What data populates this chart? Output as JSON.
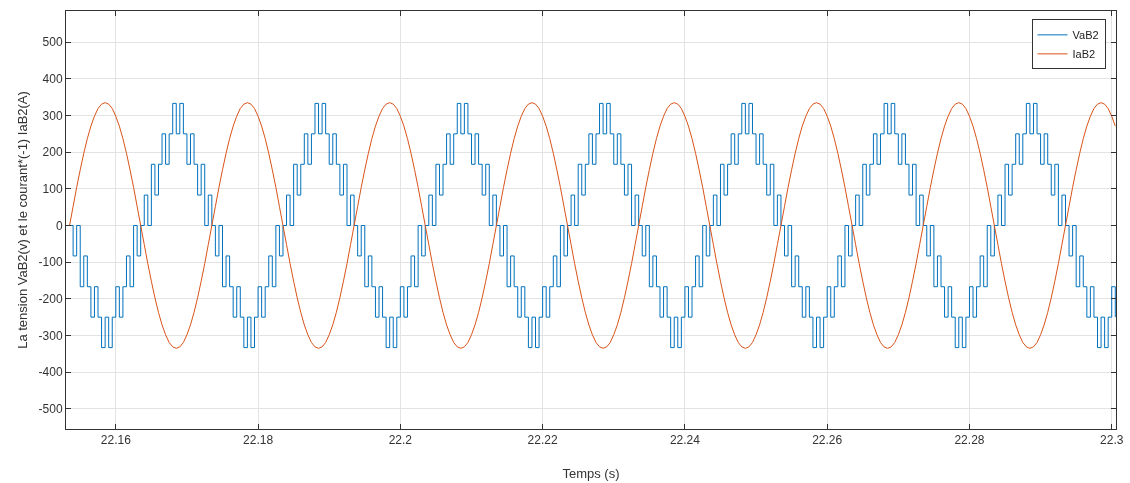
{
  "chart_data": {
    "type": "line",
    "xlabel": "Temps (s)",
    "ylabel": "La tension VaB2(v) et le courant*(-1) IaB2(A)",
    "xlim": [
      22.153,
      22.3006
    ],
    "xticks": [
      22.16,
      22.18,
      22.2,
      22.22,
      22.24,
      22.26,
      22.28,
      22.3
    ],
    "ylim": [
      -555,
      585
    ],
    "yticks": [
      -500,
      -400,
      -300,
      -200,
      -100,
      0,
      100,
      200,
      300,
      400,
      500
    ],
    "grid": true,
    "legend": "top right",
    "x": [
      22.1535,
      22.154,
      22.1545,
      22.155,
      22.1555,
      22.156,
      22.1565,
      22.157,
      22.1575,
      22.158,
      22.1585,
      22.159,
      22.1595,
      22.16,
      22.1605,
      22.161,
      22.1615,
      22.162,
      22.1625,
      22.163,
      22.1635,
      22.164,
      22.1645,
      22.165,
      22.1655,
      22.166,
      22.1665,
      22.167,
      22.1675,
      22.168,
      22.1685,
      22.169,
      22.1695,
      22.17,
      22.1705,
      22.171,
      22.1715,
      22.172,
      22.1725,
      22.173,
      22.1735,
      22.174,
      22.1745,
      22.175,
      22.1755,
      22.176,
      22.1765,
      22.177,
      22.1775,
      22.178,
      22.1785,
      22.179,
      22.1795,
      22.18,
      22.1805,
      22.181,
      22.1815,
      22.182,
      22.1825,
      22.183,
      22.1835,
      22.184,
      22.1845,
      22.185,
      22.1855,
      22.186,
      22.1865,
      22.187,
      22.1875,
      22.188,
      22.1885,
      22.189,
      22.1895,
      22.19,
      22.1905,
      22.191,
      22.1915,
      22.192,
      22.1925,
      22.193,
      22.1935,
      22.194,
      22.1945,
      22.195,
      22.1955,
      22.196,
      22.1965,
      22.197,
      22.1975,
      22.198,
      22.1985,
      22.199,
      22.1995,
      22.2,
      22.2005,
      22.201,
      22.2015,
      22.202,
      22.2025,
      22.203,
      22.2035,
      22.204,
      22.2045,
      22.205,
      22.2055,
      22.206,
      22.2065,
      22.207,
      22.2075,
      22.208,
      22.2085,
      22.209,
      22.2095,
      22.21,
      22.2105,
      22.211,
      22.2115,
      22.212,
      22.2125,
      22.213,
      22.2135,
      22.214,
      22.2145,
      22.215,
      22.2155,
      22.216,
      22.2165,
      22.217,
      22.2175,
      22.218,
      22.2185,
      22.219,
      22.2195,
      22.22,
      22.2205,
      22.221,
      22.2215,
      22.222,
      22.2225,
      22.223,
      22.2235,
      22.224,
      22.2245,
      22.225,
      22.2255,
      22.226,
      22.2265,
      22.227,
      22.2275,
      22.228,
      22.2285,
      22.229,
      22.2295,
      22.23,
      22.2305,
      22.231,
      22.2315,
      22.232,
      22.2325,
      22.233,
      22.2335,
      22.234,
      22.2345,
      22.235,
      22.2355,
      22.236,
      22.2365,
      22.237,
      22.2375,
      22.238,
      22.2385,
      22.239,
      22.2395,
      22.24,
      22.2405,
      22.241,
      22.2415,
      22.242,
      22.2425,
      22.243,
      22.2435,
      22.244,
      22.2445,
      22.245,
      22.2455,
      22.246,
      22.2465,
      22.247,
      22.2475,
      22.248,
      22.2485,
      22.249,
      22.2495,
      22.25,
      22.2505,
      22.251,
      22.2515,
      22.252,
      22.2525,
      22.253,
      22.2535,
      22.254,
      22.2545,
      22.255,
      22.2555,
      22.256,
      22.2565,
      22.257,
      22.2575,
      22.258,
      22.2585,
      22.259,
      22.2595,
      22.26,
      22.2605,
      22.261,
      22.2615,
      22.262,
      22.2625,
      22.263,
      22.2635,
      22.264,
      22.2645,
      22.265,
      22.2655,
      22.266,
      22.2665,
      22.267,
      22.2675,
      22.268,
      22.2685,
      22.269,
      22.2695,
      22.27,
      22.2705,
      22.271,
      22.2715,
      22.272,
      22.2725,
      22.273,
      22.2735,
      22.274,
      22.2745,
      22.275,
      22.2755,
      22.276,
      22.2765,
      22.277,
      22.2775,
      22.278,
      22.2785,
      22.279,
      22.2795,
      22.28,
      22.2805,
      22.281,
      22.2815,
      22.282,
      22.2825,
      22.283,
      22.2835,
      22.284,
      22.2845,
      22.285,
      22.2855,
      22.286,
      22.2865,
      22.287,
      22.2875,
      22.288,
      22.2885,
      22.289,
      22.2895,
      22.29,
      22.2905,
      22.291,
      22.2915,
      22.292,
      22.2925,
      22.293,
      22.2935,
      22.294,
      22.2945,
      22.295,
      22.2955,
      22.296,
      22.2965,
      22.297,
      22.2975,
      22.298,
      22.2985,
      22.299,
      22.2995,
      22.3,
      22.3005
    ],
    "series": [
      {
        "name": "VaB2",
        "type": "step",
        "color": "#0072bd",
        "values": [
          0,
          -83,
          0,
          -167,
          -83,
          -167,
          -250,
          -167,
          -250,
          -333,
          -250,
          -333,
          -250,
          -167,
          -250,
          -167,
          -83,
          -167,
          0,
          -83,
          0,
          83,
          0,
          167,
          83,
          167,
          250,
          167,
          250,
          333,
          250,
          333,
          250,
          167,
          250,
          167,
          83,
          167,
          0,
          83,
          0,
          -83,
          0,
          -167,
          -83,
          -167,
          -250,
          -167,
          -250,
          -333,
          -250,
          -333,
          -250,
          -167,
          -250,
          -167,
          -83,
          -167,
          0,
          -83,
          0,
          83,
          0,
          167,
          83,
          167,
          250,
          167,
          250,
          333,
          250,
          333,
          250,
          167,
          250,
          167,
          83,
          167,
          0,
          83,
          0,
          -83,
          0,
          -167,
          -83,
          -167,
          -250,
          -167,
          -250,
          -333,
          -250,
          -333,
          -250,
          -167,
          -250,
          -167,
          -83,
          -167,
          0,
          -83,
          0,
          83,
          0,
          167,
          83,
          167,
          250,
          167,
          250,
          333,
          250,
          333,
          250,
          167,
          250,
          167,
          83,
          167,
          0,
          83,
          0,
          -83,
          0,
          -167,
          -83,
          -167,
          -250,
          -167,
          -250,
          -333,
          -250,
          -333,
          -250,
          -167,
          -250,
          -167,
          -83,
          -167,
          0,
          -83,
          0,
          83,
          0,
          167,
          83,
          167,
          250,
          167,
          250,
          333,
          250,
          333,
          250,
          167,
          250,
          167,
          83,
          167,
          0,
          83,
          0,
          -83,
          0,
          -167,
          -83,
          -167,
          -250,
          -167,
          -250,
          -333,
          -250,
          -333,
          -250,
          -167,
          -250,
          -167,
          -83,
          -167,
          0,
          -83,
          0,
          83,
          0,
          167,
          83,
          167,
          250,
          167,
          250,
          333,
          250,
          333,
          250,
          167,
          250,
          167,
          83,
          167,
          0,
          83,
          0,
          -83,
          0,
          -167,
          -83,
          -167,
          -250,
          -167,
          -250,
          -333,
          -250,
          -333,
          -250,
          -167,
          -250,
          -167,
          -83,
          -167,
          0,
          -83,
          0,
          83,
          0,
          167,
          83,
          167,
          250,
          167,
          250,
          333,
          250,
          333,
          250,
          167,
          250,
          167,
          83,
          167,
          0,
          83,
          0,
          -83,
          0,
          -167,
          -83,
          -167,
          -250,
          -167,
          -250,
          -333,
          -250,
          -333,
          -250,
          -167,
          -250,
          -167,
          -83,
          -167,
          0,
          -83,
          0,
          83,
          0,
          167,
          83,
          167,
          250,
          167,
          250,
          333,
          250,
          333,
          250,
          167,
          250,
          167,
          83,
          167,
          0,
          83,
          0,
          -83,
          0,
          -167,
          -83,
          -167,
          -250,
          -167,
          -250,
          -333,
          -250,
          -333,
          -250,
          -167,
          -250
        ]
      },
      {
        "name": "IaB2",
        "type": "line",
        "color": "#d95319",
        "values": [
          0,
          52,
          104,
          152,
          197,
          237,
          271,
          298,
          319,
          331,
          335,
          331,
          319,
          298,
          271,
          237,
          197,
          152,
          104,
          52,
          0,
          -52,
          -104,
          -152,
          -197,
          -237,
          -271,
          -298,
          -319,
          -331,
          -335,
          -331,
          -319,
          -298,
          -271,
          -237,
          -197,
          -152,
          -104,
          -52,
          0,
          52,
          104,
          152,
          197,
          237,
          271,
          298,
          319,
          331,
          335,
          331,
          319,
          298,
          271,
          237,
          197,
          152,
          104,
          52,
          0,
          -52,
          -104,
          -152,
          -197,
          -237,
          -271,
          -298,
          -319,
          -331,
          -335,
          -331,
          -319,
          -298,
          -271,
          -237,
          -197,
          -152,
          -104,
          -52,
          0,
          52,
          104,
          152,
          197,
          237,
          271,
          298,
          319,
          331,
          335,
          331,
          319,
          298,
          271,
          237,
          197,
          152,
          104,
          52,
          0,
          -52,
          -104,
          -152,
          -197,
          -237,
          -271,
          -298,
          -319,
          -331,
          -335,
          -331,
          -319,
          -298,
          -271,
          -237,
          -197,
          -152,
          -104,
          -52,
          0,
          52,
          104,
          152,
          197,
          237,
          271,
          298,
          319,
          331,
          335,
          331,
          319,
          298,
          271,
          237,
          197,
          152,
          104,
          52,
          0,
          -52,
          -104,
          -152,
          -197,
          -237,
          -271,
          -298,
          -319,
          -331,
          -335,
          -331,
          -319,
          -298,
          -271,
          -237,
          -197,
          -152,
          -104,
          -52,
          0,
          52,
          104,
          152,
          197,
          237,
          271,
          298,
          319,
          331,
          335,
          331,
          319,
          298,
          271,
          237,
          197,
          152,
          104,
          52,
          0,
          -52,
          -104,
          -152,
          -197,
          -237,
          -271,
          -298,
          -319,
          -331,
          -335,
          -331,
          -319,
          -298,
          -271,
          -237,
          -197,
          -152,
          -104,
          -52,
          0,
          52,
          104,
          152,
          197,
          237,
          271,
          298,
          319,
          331,
          335,
          331,
          319,
          298,
          271,
          237,
          197,
          152,
          104,
          52,
          0,
          -52,
          -104,
          -152,
          -197,
          -237,
          -271,
          -298,
          -319,
          -331,
          -335,
          -331,
          -319,
          -298,
          -271,
          -237,
          -197,
          -152,
          -104,
          -52,
          0,
          52,
          104,
          152,
          197,
          237,
          271,
          298,
          319,
          331,
          335,
          331,
          319,
          298,
          271,
          237,
          197,
          152,
          104,
          52,
          0,
          -52,
          -104,
          -152,
          -197,
          -237,
          -271,
          -298,
          -319,
          -331,
          -335,
          -331,
          -319,
          -298,
          -271,
          -237,
          -197,
          -152,
          -104,
          -52,
          0,
          52,
          104,
          152,
          197,
          237,
          271,
          298,
          319,
          331,
          335,
          331,
          319,
          298,
          271
        ]
      }
    ]
  }
}
